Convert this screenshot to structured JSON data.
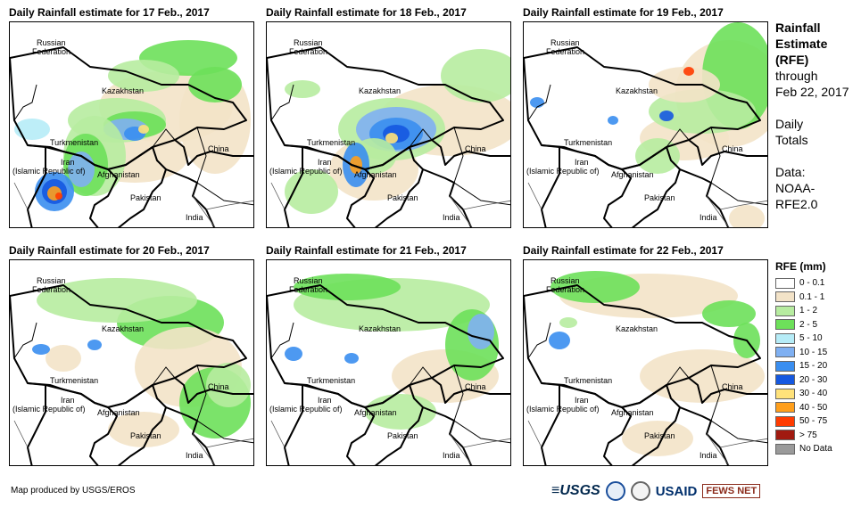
{
  "panels": [
    {
      "title": "Daily Rainfall estimate for 17 Feb., 2017",
      "day": 17
    },
    {
      "title": "Daily Rainfall estimate for 18 Feb., 2017",
      "day": 18
    },
    {
      "title": "Daily Rainfall estimate for 19 Feb., 2017",
      "day": 19
    },
    {
      "title": "Daily Rainfall estimate for 20 Feb., 2017",
      "day": 20
    },
    {
      "title": "Daily Rainfall estimate for 21 Feb., 2017",
      "day": 21
    },
    {
      "title": "Daily Rainfall estimate for 22 Feb., 2017",
      "day": 22
    }
  ],
  "labels": {
    "russia_1": "Russian",
    "russia_2": "Federation",
    "kazakhstan": "Kazakhstan",
    "turkmenistan": "Turkmenistan",
    "iran_1": "Iran",
    "iran_2": "(Islamic Republic of)",
    "afghanistan": "Afghanistan",
    "pakistan": "Pakistan",
    "china": "China",
    "india": "India"
  },
  "side": {
    "line1": "Rainfall",
    "line2": "Estimate",
    "line3": "(RFE)",
    "line4": "through",
    "line5": "Feb 22, 2017",
    "line6": "Daily",
    "line7": "Totals",
    "line8": "Data:",
    "line9": "NOAA-",
    "line10": "RFE2.0"
  },
  "legend": {
    "title": "RFE (mm)",
    "items": [
      {
        "label": "0 - 0.1",
        "color": "#ffffff"
      },
      {
        "label": "0.1 - 1",
        "color": "#f3e3c8"
      },
      {
        "label": "1 - 2",
        "color": "#b7eca0"
      },
      {
        "label": "2 - 5",
        "color": "#6de05a"
      },
      {
        "label": "5 - 10",
        "color": "#b6ecf7"
      },
      {
        "label": "10 - 15",
        "color": "#7fb0f2"
      },
      {
        "label": "15 - 20",
        "color": "#3a8ef0"
      },
      {
        "label": "20 - 30",
        "color": "#1558e0"
      },
      {
        "label": "30 - 40",
        "color": "#ffe27a"
      },
      {
        "label": "40 - 50",
        "color": "#ff9f1c"
      },
      {
        "label": "50 - 75",
        "color": "#ff3b00"
      },
      {
        "label": "> 75",
        "color": "#a11a10"
      },
      {
        "label": "No Data",
        "color": "#9a9a9a"
      }
    ]
  },
  "credit": "Map produced by USGS/EROS",
  "logos": {
    "usgs": "≡USGS",
    "usaid": "USAID",
    "fews": "FEWS NET"
  }
}
